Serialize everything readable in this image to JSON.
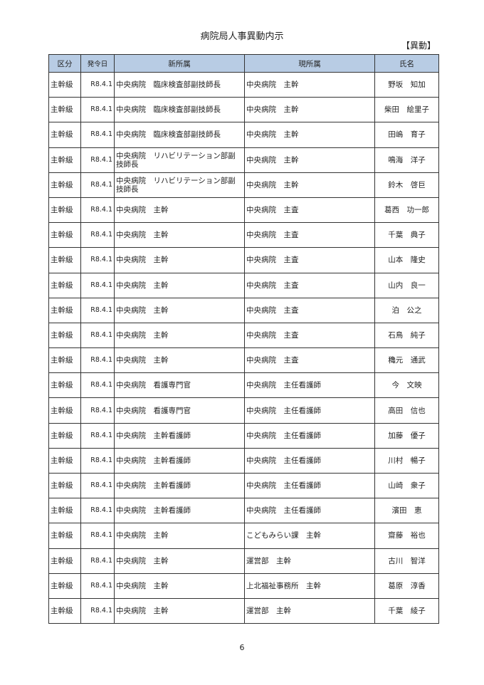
{
  "title": "病院局人事異動内示",
  "category_tag": "【異動】",
  "header_color": "#b8cce4",
  "columns": [
    "区分",
    "発令日",
    "新所属",
    "現所属",
    "氏名"
  ],
  "rows": [
    [
      "主幹級",
      "R8.4.1",
      "中央病院　臨床検査部副技師長",
      "中央病院　主幹",
      "野坂　知加"
    ],
    [
      "主幹級",
      "R8.4.1",
      "中央病院　臨床検査部副技師長",
      "中央病院　主幹",
      "柴田　絵里子"
    ],
    [
      "主幹級",
      "R8.4.1",
      "中央病院　臨床検査部副技師長",
      "中央病院　主幹",
      "田嶋　育子"
    ],
    [
      "主幹級",
      "R8.4.1",
      "中央病院　リハビリテーション部副技師長",
      "中央病院　主幹",
      "鳴海　洋子"
    ],
    [
      "主幹級",
      "R8.4.1",
      "中央病院　リハビリテーション部副技師長",
      "中央病院　主幹",
      "鈴木　啓巨"
    ],
    [
      "主幹級",
      "R8.4.1",
      "中央病院　主幹",
      "中央病院　主査",
      "葛西　功一郎"
    ],
    [
      "主幹級",
      "R8.4.1",
      "中央病院　主幹",
      "中央病院　主査",
      "千葉　典子"
    ],
    [
      "主幹級",
      "R8.4.1",
      "中央病院　主幹",
      "中央病院　主査",
      "山本　隆史"
    ],
    [
      "主幹級",
      "R8.4.1",
      "中央病院　主幹",
      "中央病院　主査",
      "山内　良一"
    ],
    [
      "主幹級",
      "R8.4.1",
      "中央病院　主幹",
      "中央病院　主査",
      "泊　公之"
    ],
    [
      "主幹級",
      "R8.4.1",
      "中央病院　主幹",
      "中央病院　主査",
      "石鳥　純子"
    ],
    [
      "主幹級",
      "R8.4.1",
      "中央病院　主幹",
      "中央病院　主査",
      "穐元　通武"
    ],
    [
      "主幹級",
      "R8.4.1",
      "中央病院　看護専門官",
      "中央病院　主任看護師",
      "今　文映"
    ],
    [
      "主幹級",
      "R8.4.1",
      "中央病院　看護専門官",
      "中央病院　主任看護師",
      "高田　信也"
    ],
    [
      "主幹級",
      "R8.4.1",
      "中央病院　主幹看護師",
      "中央病院　主任看護師",
      "加藤　優子"
    ],
    [
      "主幹級",
      "R8.4.1",
      "中央病院　主幹看護師",
      "中央病院　主任看護師",
      "川村　暢子"
    ],
    [
      "主幹級",
      "R8.4.1",
      "中央病院　主幹看護師",
      "中央病院　主任看護師",
      "山崎　衆子"
    ],
    [
      "主幹級",
      "R8.4.1",
      "中央病院　主幹看護師",
      "中央病院　主任看護師",
      "濱田　恵"
    ],
    [
      "主幹級",
      "R8.4.1",
      "中央病院　主幹",
      "こどもみらい課　主幹",
      "齋藤　裕也"
    ],
    [
      "主幹級",
      "R8.4.1",
      "中央病院　主幹",
      "運営部　主幹",
      "古川　智洋"
    ],
    [
      "主幹級",
      "R8.4.1",
      "中央病院　主幹",
      "上北福祉事務所　主幹",
      "葛原　淳香"
    ],
    [
      "主幹級",
      "R8.4.1",
      "中央病院　主幹",
      "運営部　主幹",
      "千葉　綾子"
    ]
  ],
  "page_number": "6"
}
